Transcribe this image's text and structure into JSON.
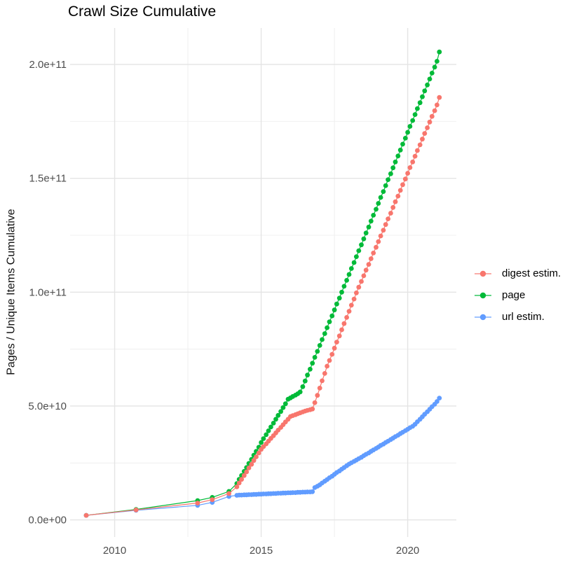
{
  "title": "Crawl Size Cumulative",
  "y_axis": {
    "label": "Pages / Unique Items Cumulative",
    "ticks": [
      {
        "value": 0,
        "label": "0.0e+00"
      },
      {
        "value": 50,
        "label": "5.0e+10"
      },
      {
        "value": 100,
        "label": "1.0e+11"
      },
      {
        "value": 150,
        "label": "1.5e+11"
      },
      {
        "value": 200,
        "label": "2.0e+11"
      }
    ],
    "minor_ticks": [
      25,
      75,
      125,
      175
    ]
  },
  "x_axis": {
    "ticks": [
      {
        "value": 2010,
        "label": "2010"
      },
      {
        "value": 2015,
        "label": "2015"
      },
      {
        "value": 2020,
        "label": "2020"
      }
    ],
    "minor_ticks": [
      2012.5,
      2017.5
    ]
  },
  "legend": {
    "items": [
      {
        "label": "digest estim.",
        "color": "#F8766D"
      },
      {
        "label": "page",
        "color": "#00BA38"
      },
      {
        "label": "url estim.",
        "color": "#619CFF"
      }
    ]
  },
  "colors": {
    "grid_major": "#E4E4E4",
    "grid_minor": "#F0F0F0",
    "tick_text": "#4D4D4D",
    "digest": "#F8766D",
    "page": "#00BA38",
    "url": "#619CFF"
  },
  "chart_data": {
    "type": "line",
    "title": "Crawl Size Cumulative",
    "xlabel": "",
    "ylabel": "Pages / Unique Items Cumulative",
    "values_scale": "1e9 (billions of pages / unique items)",
    "xlim": [
      2008.48,
      2021.66
    ],
    "ylim": [
      -7.5,
      216
    ],
    "grid": true,
    "legend_position": "right",
    "x": [
      2009.03,
      2010.73,
      2012.83,
      2013.33,
      2013.9,
      2014.17,
      2014.25,
      2014.33,
      2014.42,
      2014.5,
      2014.58,
      2014.67,
      2014.75,
      2014.83,
      2014.92,
      2015.0,
      2015.08,
      2015.17,
      2015.25,
      2015.33,
      2015.42,
      2015.5,
      2015.58,
      2015.67,
      2015.75,
      2015.83,
      2015.92,
      2016.0,
      2016.08,
      2016.17,
      2016.25,
      2016.33,
      2016.42,
      2016.5,
      2016.58,
      2016.67,
      2016.75,
      2016.83,
      2016.92,
      2017.0,
      2017.08,
      2017.17,
      2017.25,
      2017.33,
      2017.42,
      2017.5,
      2017.58,
      2017.67,
      2017.75,
      2017.83,
      2017.92,
      2018.0,
      2018.08,
      2018.17,
      2018.25,
      2018.33,
      2018.42,
      2018.5,
      2018.58,
      2018.67,
      2018.75,
      2018.83,
      2018.92,
      2019.0,
      2019.08,
      2019.17,
      2019.25,
      2019.33,
      2019.42,
      2019.5,
      2019.58,
      2019.67,
      2019.75,
      2019.83,
      2019.92,
      2020.0,
      2020.08,
      2020.17,
      2020.25,
      2020.33,
      2020.42,
      2020.5,
      2020.58,
      2020.67,
      2020.75,
      2020.83,
      2020.92,
      2021.0,
      2021.08
    ],
    "series": [
      {
        "name": "digest estim.",
        "color": "#F8766D",
        "values": [
          2.0,
          4.4,
          7.4,
          8.9,
          11.6,
          14.5,
          16.2,
          17.8,
          19.5,
          21.1,
          22.8,
          24.4,
          26.1,
          27.7,
          29.4,
          31.0,
          32.2,
          33.4,
          34.6,
          35.8,
          37.0,
          38.2,
          39.4,
          40.6,
          41.8,
          43.0,
          44.2,
          45.4,
          45.8,
          46.2,
          46.6,
          47.0,
          47.4,
          47.8,
          48.1,
          48.4,
          48.7,
          51.5,
          54.7,
          57.9,
          61.1,
          64.3,
          67.5,
          70.0,
          72.7,
          75.4,
          78.1,
          80.8,
          83.5,
          86.2,
          88.9,
          91.6,
          94.3,
          97.0,
          99.7,
          102.2,
          104.7,
          107.2,
          109.7,
          112.2,
          114.7,
          117.2,
          119.7,
          122.2,
          124.7,
          127.2,
          129.7,
          132.2,
          134.7,
          137.2,
          139.7,
          142.2,
          144.7,
          147.2,
          149.7,
          152.2,
          154.7,
          157.2,
          159.7,
          162.2,
          164.7,
          167.2,
          169.7,
          172.2,
          174.7,
          177.2,
          179.7,
          182.2,
          185.5
        ]
      },
      {
        "name": "page",
        "color": "#00BA38",
        "values": [
          2.0,
          4.6,
          8.5,
          9.9,
          12.5,
          16.0,
          17.8,
          19.5,
          21.3,
          23.0,
          24.8,
          26.6,
          28.4,
          30.1,
          31.9,
          34.0,
          35.7,
          37.4,
          39.1,
          40.8,
          42.5,
          44.2,
          45.9,
          47.6,
          49.3,
          51.0,
          53.0,
          53.6,
          54.2,
          54.8,
          55.4,
          56.2,
          58.5,
          61.0,
          63.6,
          66.2,
          68.8,
          71.4,
          74.0,
          76.6,
          79.2,
          81.8,
          84.4,
          87.0,
          89.6,
          92.2,
          94.8,
          97.4,
          100.0,
          102.6,
          105.2,
          107.8,
          110.4,
          113.0,
          115.6,
          118.2,
          120.8,
          123.4,
          126.0,
          128.6,
          131.2,
          133.8,
          136.4,
          139.0,
          141.6,
          144.2,
          146.8,
          149.4,
          152.0,
          154.6,
          157.2,
          159.8,
          162.4,
          165.0,
          167.6,
          170.2,
          172.8,
          175.4,
          178.0,
          180.6,
          183.2,
          185.8,
          188.4,
          191.0,
          193.6,
          196.2,
          198.8,
          201.4,
          205.5
        ]
      },
      {
        "name": "url estim.",
        "color": "#619CFF",
        "values": [
          2.0,
          4.2,
          6.4,
          7.7,
          10.3,
          10.8,
          10.9,
          10.9,
          11.0,
          11.0,
          11.1,
          11.1,
          11.2,
          11.2,
          11.3,
          11.3,
          11.4,
          11.4,
          11.5,
          11.5,
          11.6,
          11.6,
          11.7,
          11.7,
          11.8,
          11.8,
          11.9,
          11.9,
          12.0,
          12.0,
          12.1,
          12.1,
          12.2,
          12.2,
          12.3,
          12.3,
          12.4,
          14.2,
          14.8,
          15.4,
          16.2,
          17.0,
          17.7,
          18.5,
          19.2,
          20.0,
          20.8,
          21.5,
          22.3,
          23.0,
          23.8,
          24.5,
          25.1,
          25.7,
          26.3,
          26.9,
          27.5,
          28.2,
          28.8,
          29.4,
          30.1,
          30.7,
          31.4,
          32.0,
          32.7,
          33.3,
          34.0,
          34.6,
          35.3,
          35.9,
          36.6,
          37.2,
          37.9,
          38.5,
          39.2,
          39.8,
          40.5,
          41.1,
          42.0,
          43.1,
          44.2,
          45.3,
          46.4,
          47.5,
          48.6,
          49.7,
          50.8,
          52.0,
          53.5
        ]
      }
    ]
  }
}
